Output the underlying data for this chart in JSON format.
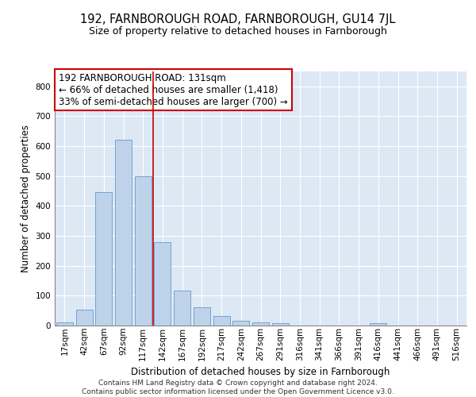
{
  "title1": "192, FARNBOROUGH ROAD, FARNBOROUGH, GU14 7JL",
  "title2": "Size of property relative to detached houses in Farnborough",
  "xlabel": "Distribution of detached houses by size in Farnborough",
  "ylabel": "Number of detached properties",
  "categories": [
    "17sqm",
    "42sqm",
    "67sqm",
    "92sqm",
    "117sqm",
    "142sqm",
    "167sqm",
    "192sqm",
    "217sqm",
    "242sqm",
    "267sqm",
    "291sqm",
    "316sqm",
    "341sqm",
    "366sqm",
    "391sqm",
    "416sqm",
    "441sqm",
    "466sqm",
    "491sqm",
    "516sqm"
  ],
  "values": [
    10,
    52,
    447,
    622,
    500,
    280,
    118,
    62,
    33,
    17,
    10,
    7,
    0,
    0,
    0,
    0,
    7,
    0,
    0,
    0,
    0
  ],
  "bar_color": "#bed3ea",
  "bar_edge_color": "#6699cc",
  "vline_x": 4.5,
  "vline_color": "#cc0000",
  "annotation_text": "192 FARNBOROUGH ROAD: 131sqm\n← 66% of detached houses are smaller (1,418)\n33% of semi-detached houses are larger (700) →",
  "annotation_box_color": "#ffffff",
  "annotation_box_edge": "#cc0000",
  "ylim": [
    0,
    850
  ],
  "yticks": [
    0,
    100,
    200,
    300,
    400,
    500,
    600,
    700,
    800
  ],
  "background_color": "#dde8f5",
  "grid_color": "#ffffff",
  "footer1": "Contains HM Land Registry data © Crown copyright and database right 2024.",
  "footer2": "Contains public sector information licensed under the Open Government Licence v3.0.",
  "title1_fontsize": 10.5,
  "title2_fontsize": 9,
  "xlabel_fontsize": 8.5,
  "ylabel_fontsize": 8.5,
  "tick_fontsize": 7.5,
  "annotation_fontsize": 8.5,
  "footer_fontsize": 6.5
}
